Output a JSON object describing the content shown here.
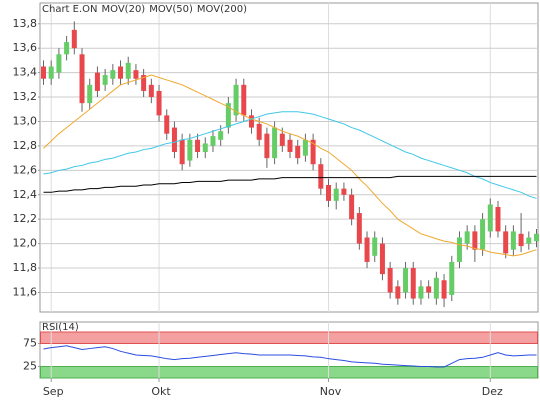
{
  "chart_data": [
    {
      "type": "candlestick",
      "series": [
        {
          "name": "Chart E.ON",
          "color": "#888888",
          "up_color": "#66cc66",
          "down_color": "#e8474c",
          "open": [
            13.45,
            13.35,
            13.4,
            13.55,
            13.75,
            13.55,
            13.15,
            13.4,
            13.3,
            13.35,
            13.45,
            13.35,
            13.42,
            13.38,
            13.3,
            13.25,
            13.05,
            12.95,
            12.85,
            12.68,
            12.85,
            12.75,
            12.8,
            12.85,
            12.95,
            13.05,
            13.3,
            13.05,
            12.98,
            12.9,
            12.7,
            12.9,
            12.85,
            12.8,
            12.72,
            12.85,
            12.65,
            12.48,
            12.35,
            12.45,
            12.4,
            12.25,
            12.05,
            11.9,
            12.0,
            11.8,
            11.65,
            11.6,
            11.8,
            11.55,
            11.65,
            11.55,
            11.7,
            11.58,
            11.85,
            12.0,
            12.1,
            11.95,
            12.1,
            12.3,
            12.1,
            11.95,
            12.08,
            12.0,
            12.02
          ],
          "high": [
            13.5,
            13.5,
            13.6,
            13.7,
            13.82,
            13.6,
            13.35,
            13.45,
            13.43,
            13.47,
            13.5,
            13.53,
            13.47,
            13.43,
            13.35,
            13.3,
            13.1,
            13.0,
            12.9,
            12.9,
            12.9,
            12.87,
            12.93,
            12.97,
            13.2,
            13.35,
            13.35,
            13.1,
            13.03,
            12.95,
            13.0,
            12.95,
            12.9,
            12.85,
            12.9,
            12.9,
            12.7,
            12.53,
            12.5,
            12.5,
            12.45,
            12.3,
            12.1,
            12.1,
            12.05,
            11.85,
            11.7,
            11.85,
            11.85,
            11.7,
            11.7,
            11.77,
            11.75,
            11.9,
            12.1,
            12.15,
            12.15,
            12.25,
            12.37,
            12.35,
            12.15,
            12.15,
            12.25,
            12.1,
            12.12
          ],
          "low": [
            13.3,
            13.3,
            13.35,
            13.5,
            13.55,
            13.08,
            13.1,
            13.2,
            13.25,
            13.3,
            13.3,
            13.3,
            13.3,
            13.2,
            13.15,
            13.0,
            12.85,
            12.7,
            12.6,
            12.63,
            12.7,
            12.7,
            12.75,
            12.8,
            12.9,
            13.0,
            13.0,
            12.9,
            12.8,
            12.62,
            12.65,
            12.75,
            12.7,
            12.65,
            12.67,
            12.6,
            12.4,
            12.3,
            12.28,
            12.35,
            12.15,
            11.95,
            11.8,
            11.85,
            11.7,
            11.55,
            11.5,
            11.55,
            11.5,
            11.5,
            11.55,
            11.5,
            11.48,
            11.53,
            11.8,
            11.95,
            11.85,
            11.9,
            12.05,
            12.05,
            11.88,
            11.9,
            11.93,
            11.95,
            11.97
          ],
          "close": [
            13.35,
            13.45,
            13.55,
            13.65,
            13.6,
            13.15,
            13.3,
            13.25,
            13.38,
            13.42,
            13.35,
            13.48,
            13.35,
            13.25,
            13.2,
            13.05,
            12.9,
            12.75,
            12.65,
            12.85,
            12.75,
            12.82,
            12.88,
            12.92,
            13.15,
            13.3,
            13.05,
            12.95,
            12.85,
            12.7,
            12.95,
            12.8,
            12.75,
            12.7,
            12.85,
            12.65,
            12.45,
            12.35,
            12.45,
            12.4,
            12.2,
            12.0,
            11.85,
            12.05,
            11.75,
            11.6,
            11.55,
            11.8,
            11.55,
            11.65,
            11.6,
            11.72,
            11.55,
            11.85,
            12.05,
            12.1,
            11.95,
            12.2,
            12.32,
            12.1,
            11.92,
            12.1,
            11.98,
            12.05,
            12.08
          ]
        },
        {
          "name": "MOV(20)",
          "color": "#f0a830",
          "values": [
            12.78,
            12.84,
            12.9,
            12.95,
            13.0,
            13.05,
            13.1,
            13.15,
            13.2,
            13.25,
            13.3,
            13.32,
            13.34,
            13.36,
            13.38,
            13.36,
            13.34,
            13.32,
            13.3,
            13.27,
            13.24,
            13.21,
            13.18,
            13.15,
            13.12,
            13.08,
            13.05,
            13.02,
            13.0,
            12.98,
            12.95,
            12.92,
            12.9,
            12.88,
            12.85,
            12.82,
            12.78,
            12.75,
            12.7,
            12.65,
            12.6,
            12.53,
            12.47,
            12.4,
            12.33,
            12.27,
            12.2,
            12.16,
            12.12,
            12.08,
            12.06,
            12.04,
            12.02,
            12.01,
            11.99,
            11.98,
            11.96,
            11.95,
            11.93,
            11.92,
            11.91,
            11.9,
            11.91,
            11.93,
            11.95
          ]
        },
        {
          "name": "MOV(50)",
          "color": "#40c8e8",
          "values": [
            12.57,
            12.58,
            12.6,
            12.61,
            12.63,
            12.64,
            12.66,
            12.67,
            12.69,
            12.7,
            12.72,
            12.74,
            12.75,
            12.77,
            12.78,
            12.8,
            12.82,
            12.83,
            12.85,
            12.86,
            12.88,
            12.9,
            12.92,
            12.94,
            12.96,
            12.98,
            13.0,
            13.02,
            13.04,
            13.06,
            13.07,
            13.08,
            13.08,
            13.08,
            13.07,
            13.06,
            13.04,
            13.02,
            13.0,
            12.98,
            12.95,
            12.93,
            12.9,
            12.87,
            12.84,
            12.81,
            12.78,
            12.75,
            12.73,
            12.7,
            12.68,
            12.66,
            12.64,
            12.62,
            12.6,
            12.58,
            12.55,
            12.53,
            12.5,
            12.48,
            12.46,
            12.44,
            12.42,
            12.39,
            12.37
          ]
        },
        {
          "name": "MOV(200)",
          "color": "#000000",
          "values": [
            12.42,
            12.42,
            12.43,
            12.43,
            12.44,
            12.44,
            12.45,
            12.45,
            12.46,
            12.46,
            12.47,
            12.47,
            12.47,
            12.48,
            12.48,
            12.49,
            12.49,
            12.49,
            12.5,
            12.5,
            12.51,
            12.51,
            12.51,
            12.51,
            12.52,
            12.52,
            12.52,
            12.52,
            12.53,
            12.53,
            12.53,
            12.54,
            12.54,
            12.54,
            12.54,
            12.54,
            12.54,
            12.54,
            12.54,
            12.54,
            12.54,
            12.54,
            12.54,
            12.54,
            12.54,
            12.54,
            12.55,
            12.55,
            12.55,
            12.55,
            12.55,
            12.55,
            12.55,
            12.55,
            12.55,
            12.55,
            12.55,
            12.55,
            12.55,
            12.55,
            12.55,
            12.55,
            12.55,
            12.55,
            12.55
          ]
        }
      ],
      "ylim": [
        11.44,
        13.97
      ],
      "yticks": [
        {
          "value": 11.6,
          "label": "11,6"
        },
        {
          "value": 11.8,
          "label": "11,8"
        },
        {
          "value": 12.0,
          "label": "12,0"
        },
        {
          "value": 12.2,
          "label": "12,2"
        },
        {
          "value": 12.4,
          "label": "12,4"
        },
        {
          "value": 12.6,
          "label": "12,6"
        },
        {
          "value": 12.8,
          "label": "12,8"
        },
        {
          "value": 13.0,
          "label": "13,0"
        },
        {
          "value": 13.2,
          "label": "13,2"
        },
        {
          "value": 13.4,
          "label": "13,4"
        },
        {
          "value": 13.6,
          "label": "13,6"
        },
        {
          "value": 13.8,
          "label": "13,8"
        }
      ],
      "grid": true
    },
    {
      "type": "line",
      "title": "RSI(14)",
      "categories": [
        null,
        "Sep",
        null,
        null,
        null,
        null,
        null,
        null,
        null,
        null,
        null,
        null,
        null,
        null,
        null,
        "Okt",
        null,
        null,
        null,
        null,
        null,
        null,
        null,
        null,
        null,
        null,
        null,
        null,
        null,
        null,
        null,
        null,
        null,
        null,
        null,
        null,
        null,
        "Nov",
        null,
        null,
        null,
        null,
        null,
        null,
        null,
        null,
        null,
        null,
        null,
        null,
        null,
        null,
        null,
        null,
        null,
        null,
        null,
        null,
        "Dez",
        null,
        null,
        null,
        null,
        null,
        null
      ],
      "series": [
        {
          "name": "RSI(14)",
          "color": "#2a4de0",
          "values": [
            63,
            66,
            68,
            70,
            66,
            62,
            64,
            66,
            68,
            64,
            58,
            54,
            50,
            49,
            48,
            45,
            42,
            40,
            42,
            43,
            45,
            47,
            49,
            51,
            53,
            55,
            53,
            52,
            50,
            50,
            50,
            50,
            50,
            49,
            48,
            46,
            45,
            42,
            40,
            38,
            35,
            34,
            33,
            32,
            30,
            29,
            28,
            27,
            26,
            25,
            25,
            24,
            24,
            32,
            40,
            42,
            43,
            45,
            50,
            55,
            50,
            48,
            49,
            50,
            50
          ]
        }
      ],
      "bands": [
        {
          "from": 75,
          "to": 100,
          "color": "#f4a0a0"
        },
        {
          "from": 0,
          "to": 25,
          "color": "#8ad88a"
        }
      ],
      "ylim": [
        0,
        100
      ],
      "yticks": [
        25,
        75
      ],
      "grid": true
    }
  ]
}
